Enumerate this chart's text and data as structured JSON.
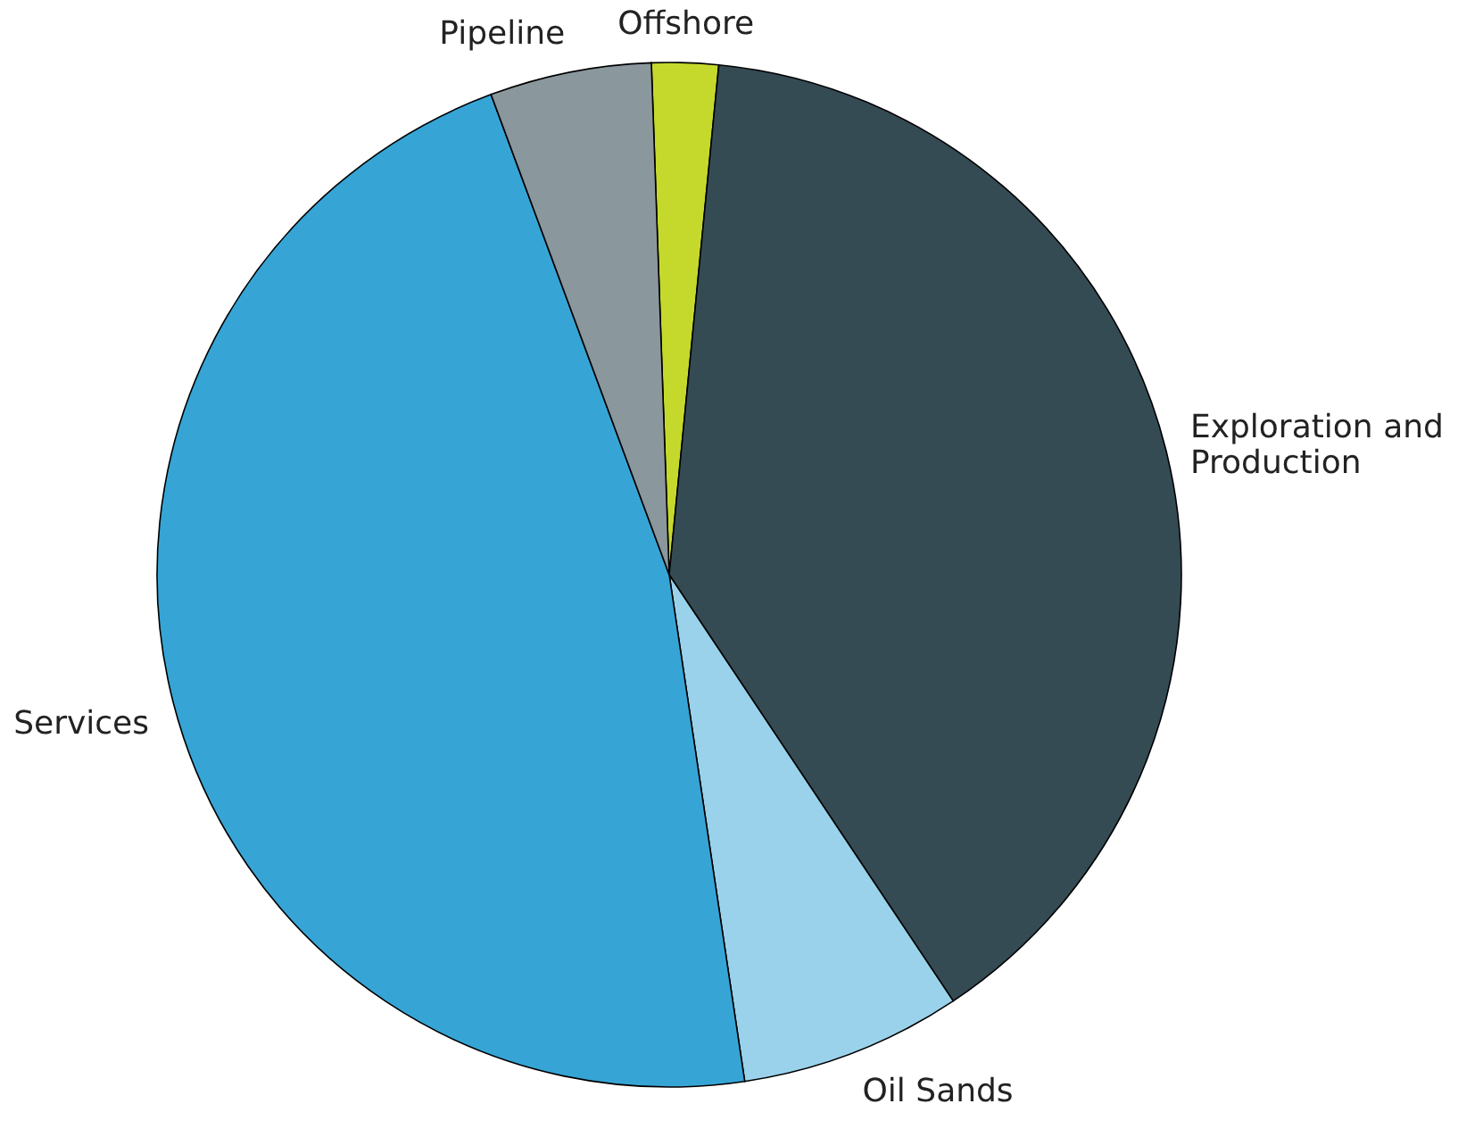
{
  "chart_data": {
    "type": "pie",
    "categories": [
      "Offshore",
      "Exploration and Production",
      "Oil Sands",
      "Services",
      "Pipeline"
    ],
    "values": [
      2.1,
      39.1,
      7.0,
      46.7,
      5.1
    ],
    "colors": [
      "#c5d92d",
      "#354b54",
      "#9ad2eb",
      "#36a5d6",
      "#8a979d"
    ]
  }
}
